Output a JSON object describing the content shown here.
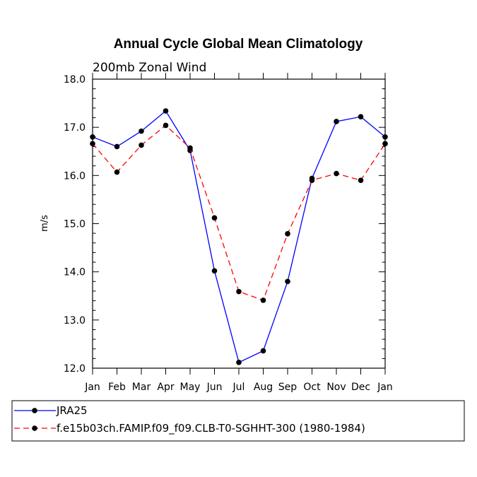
{
  "chart_data": {
    "type": "line",
    "title": "Annual Cycle Global Mean Climatology",
    "subtitle": "200mb Zonal Wind",
    "xlabel": "",
    "ylabel": "m/s",
    "ylim": [
      12.0,
      18.0
    ],
    "y_tick_labels": [
      "12.0",
      "13.0",
      "14.0",
      "15.0",
      "16.0",
      "17.0",
      "18.0"
    ],
    "categories": [
      "Jan",
      "Feb",
      "Mar",
      "Apr",
      "May",
      "Jun",
      "Jul",
      "Aug",
      "Sep",
      "Oct",
      "Nov",
      "Dec",
      "Jan"
    ],
    "grid": false,
    "legend_position": "bottom",
    "series": [
      {
        "name": "JRA25",
        "color": "#0000ff",
        "style": "solid",
        "marker": "filled-circle",
        "values": [
          16.8,
          16.6,
          16.92,
          17.34,
          16.52,
          14.02,
          12.12,
          12.36,
          13.8,
          15.94,
          17.12,
          17.22,
          16.8
        ]
      },
      {
        "name": "f.e15b03ch.FAMIP.f09_f09.CLB-T0-SGHHT-300 (1980-1984)",
        "color": "#ff0000",
        "style": "dashed",
        "marker": "filled-circle",
        "values": [
          16.66,
          16.07,
          16.63,
          17.04,
          16.57,
          15.12,
          13.59,
          13.41,
          14.79,
          15.9,
          16.04,
          15.9,
          16.66
        ]
      }
    ]
  }
}
